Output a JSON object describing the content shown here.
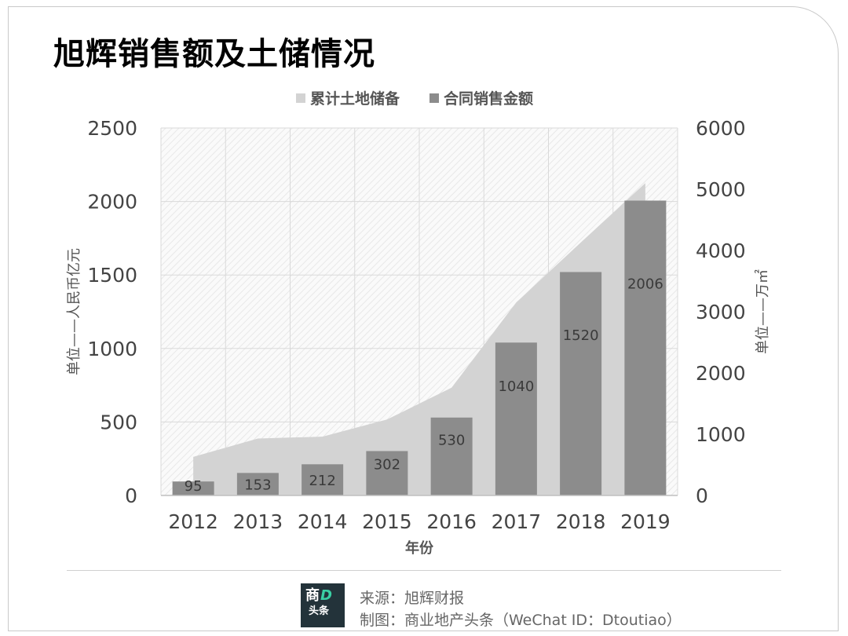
{
  "title": "旭辉销售额及土储情况",
  "chart_data": {
    "type": "bar",
    "categories": [
      "2012",
      "2013",
      "2014",
      "2015",
      "2016",
      "2017",
      "2018",
      "2019"
    ],
    "series": [
      {
        "name": "累计土地储备",
        "type": "area",
        "axis": "right",
        "color": "#d3d3d3",
        "values": [
          630,
          930,
          960,
          1240,
          1760,
          3150,
          4130,
          5100
        ]
      },
      {
        "name": "合同销售金额",
        "type": "bar",
        "axis": "left",
        "color": "#8c8c8c",
        "values": [
          95,
          153,
          212,
          302,
          530,
          1040,
          1520,
          2006
        ]
      }
    ],
    "data_labels": [
      "95",
      "153",
      "212",
      "302",
      "530",
      "1040",
      "1520",
      "2006"
    ],
    "xlabel": "年份",
    "ylabel": "单位——人民币亿元",
    "y2label": "单位——万㎡",
    "ylim": [
      0,
      2500
    ],
    "y2lim": [
      0,
      6000
    ],
    "yticks": [
      "0",
      "500",
      "1000",
      "1500",
      "2000",
      "2500"
    ],
    "y2ticks": [
      "0",
      "1000",
      "2000",
      "3000",
      "4000",
      "5000",
      "6000"
    ],
    "legend_position": "top",
    "grid": true
  },
  "footer": {
    "logo_line1": "商",
    "logo_d": "D",
    "logo_line2": "头条",
    "source": "来源：旭辉财报",
    "credit": "制图：商业地产头条（WeChat ID：Dtoutiao）"
  }
}
